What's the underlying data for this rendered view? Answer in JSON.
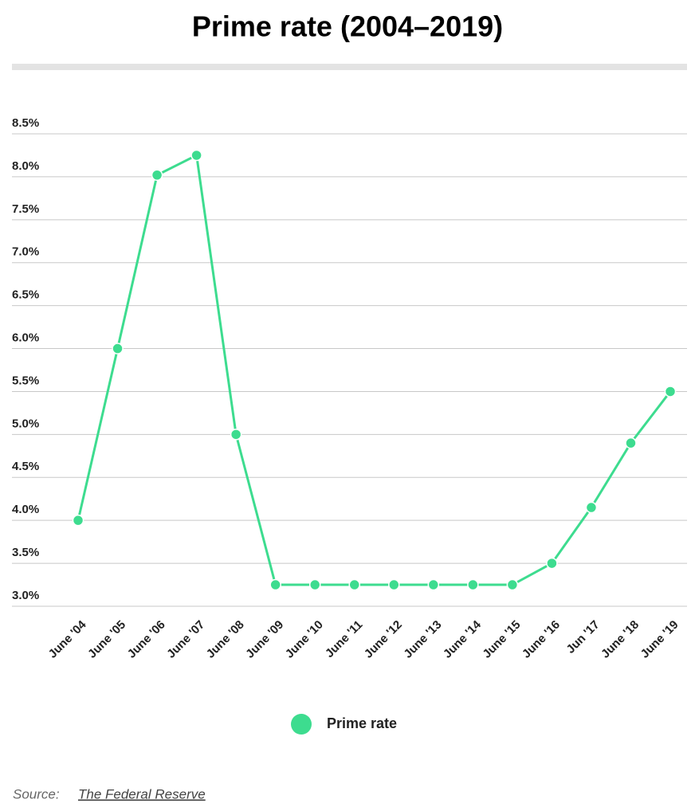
{
  "chart_data": {
    "type": "line",
    "title": "Prime rate (2004–2019)",
    "categories": [
      "June '04",
      "June '05",
      "June '06",
      "June '07",
      "June '08",
      "June '09",
      "June '10",
      "June '11",
      "June '12",
      "June '13",
      "June '14",
      "June '15",
      "June '16",
      "Jun '17",
      "June '18",
      "June '19"
    ],
    "series": [
      {
        "name": "Prime rate",
        "color": "#3ddc8f",
        "values": [
          4.0,
          6.0,
          8.02,
          8.25,
          5.0,
          3.25,
          3.25,
          3.25,
          3.25,
          3.25,
          3.25,
          3.25,
          3.5,
          4.15,
          4.9,
          5.5
        ]
      }
    ],
    "ylim": [
      3,
      8.5
    ],
    "yticks": [
      {
        "value": 3,
        "label": "3.0%"
      },
      {
        "value": 3.5,
        "label": "3.5%"
      },
      {
        "value": 4,
        "label": "4.0%"
      },
      {
        "value": 4.5,
        "label": "4.5%"
      },
      {
        "value": 5,
        "label": "5.0%"
      },
      {
        "value": 5.5,
        "label": "5.5%"
      },
      {
        "value": 6,
        "label": "6.0%"
      },
      {
        "value": 6.5,
        "label": "6.5%"
      },
      {
        "value": 7,
        "label": "7.0%"
      },
      {
        "value": 7.5,
        "label": "7.5%"
      },
      {
        "value": 8,
        "label": "8.0%"
      },
      {
        "value": 8.5,
        "label": "8.5%"
      }
    ],
    "grid": true,
    "source_label": "Source:",
    "source": "The Federal Reserve"
  }
}
